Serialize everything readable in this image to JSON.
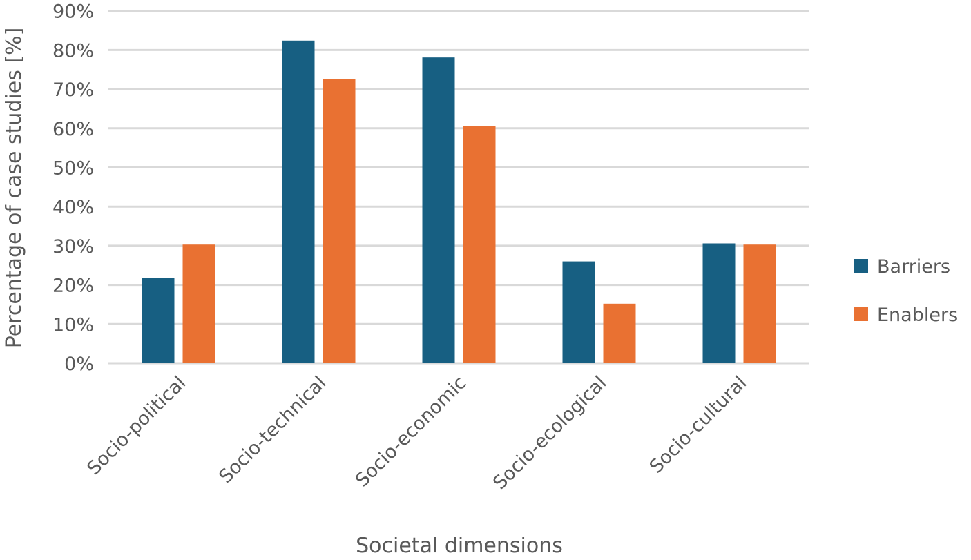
{
  "chart_data": {
    "type": "bar",
    "title": "",
    "xlabel": "Societal dimensions",
    "ylabel": "Percentage of case studies [%]",
    "categories": [
      "Socio-political",
      "Socio-technical",
      "Socio-economic",
      "Socio-ecological",
      "Socio-cultural"
    ],
    "series": [
      {
        "name": "Barriers",
        "color": "#175F82",
        "values": [
          21.8,
          82.4,
          78.1,
          26.0,
          30.6
        ]
      },
      {
        "name": "Enablers",
        "color": "#E97132",
        "values": [
          30.3,
          72.5,
          60.5,
          15.2,
          30.3
        ]
      }
    ],
    "ylim": [
      0,
      90
    ],
    "yticks": [
      "0%",
      "10%",
      "20%",
      "30%",
      "40%",
      "50%",
      "60%",
      "70%",
      "80%",
      "90%"
    ],
    "grid": true,
    "legend": "right"
  }
}
